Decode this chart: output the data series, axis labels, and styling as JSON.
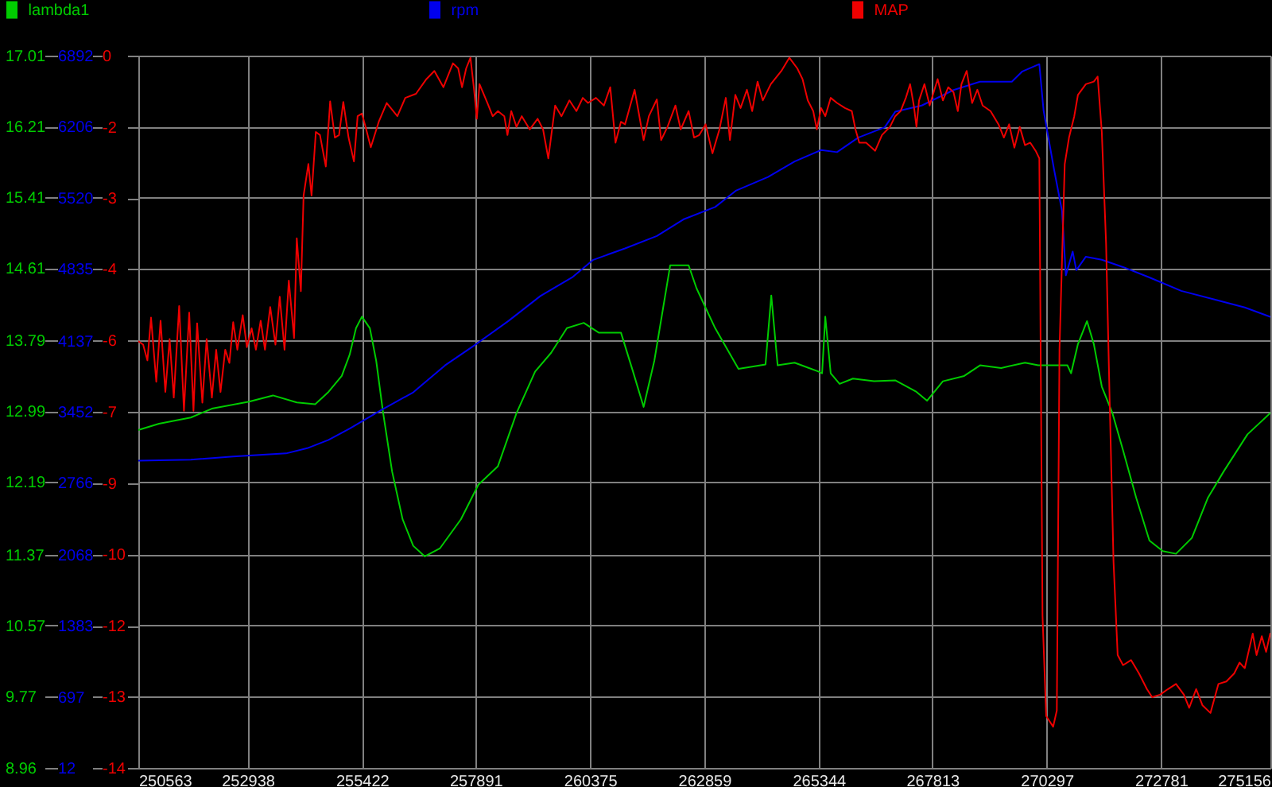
{
  "chart_data": {
    "type": "line",
    "legend": "top",
    "grid": true,
    "xlim": [
      250563,
      275156
    ],
    "xticks": [
      250563,
      252938,
      255422,
      257891,
      260375,
      262859,
      265344,
      267813,
      270297,
      272781,
      275156
    ],
    "ylim": [
      8.96,
      17.01
    ],
    "yticks": [
      8.96,
      9.77,
      10.57,
      11.37,
      12.19,
      12.99,
      13.79,
      14.61,
      15.41,
      16.21,
      17.01
    ],
    "y2lim": [
      12,
      6892
    ],
    "y2ticks": [
      12,
      697,
      1383,
      2068,
      2766,
      3452,
      4137,
      4835,
      5520,
      6206,
      6892
    ],
    "y3lim": [
      -14.3,
      -0.3
    ],
    "y3ticks": [
      {
        "value": -14.3,
        "label": "-14"
      },
      {
        "value": -12.9,
        "label": "-13"
      },
      {
        "value": -11.51,
        "label": "-12"
      },
      {
        "value": -10.1,
        "label": "-10"
      },
      {
        "value": -8.7,
        "label": "-9"
      },
      {
        "value": -7.3,
        "label": "-7"
      },
      {
        "value": -5.9,
        "label": "-6"
      },
      {
        "value": -4.49,
        "label": "-4"
      },
      {
        "value": -3.1,
        "label": "-3"
      },
      {
        "value": -1.7,
        "label": "-2"
      },
      {
        "value": -0.3,
        "label": "0"
      }
    ],
    "series": [
      {
        "name": "lambda1",
        "color": "#00cc00",
        "axis": "y",
        "x": [
          250573,
          251012,
          251702,
          252161,
          252969,
          253487,
          254005,
          254405,
          254695,
          254982,
          255154,
          255292,
          255420,
          255593,
          255731,
          255879,
          256076,
          256304,
          256535,
          256787,
          257112,
          257571,
          257950,
          258375,
          258779,
          259183,
          259528,
          259873,
          260239,
          260563,
          261047,
          261309,
          261540,
          261772,
          262117,
          262517,
          262690,
          263094,
          263600,
          264188,
          264313,
          264451,
          264820,
          265338,
          265417,
          265486,
          265604,
          265797,
          266087,
          266546,
          267005,
          267467,
          267696,
          268041,
          268503,
          268848,
          269307,
          269825,
          270112,
          270747,
          270826,
          270975,
          271172,
          271320,
          271493,
          271724,
          271955,
          272242,
          272528,
          272818,
          273105,
          273450,
          273795,
          274140,
          274658,
          275152
        ],
        "values": [
          12.78,
          12.85,
          12.92,
          13.02,
          13.1,
          13.17,
          13.09,
          13.07,
          13.21,
          13.39,
          13.63,
          13.93,
          14.06,
          13.93,
          13.56,
          12.98,
          12.31,
          11.77,
          11.47,
          11.35,
          11.44,
          11.77,
          12.16,
          12.37,
          12.97,
          13.44,
          13.65,
          13.93,
          13.99,
          13.88,
          13.88,
          13.44,
          13.04,
          13.56,
          14.64,
          14.64,
          14.38,
          13.93,
          13.47,
          13.52,
          14.3,
          13.51,
          13.54,
          13.44,
          13.42,
          14.06,
          13.42,
          13.3,
          13.36,
          13.33,
          13.34,
          13.21,
          13.11,
          13.33,
          13.39,
          13.51,
          13.48,
          13.54,
          13.51,
          13.51,
          13.42,
          13.75,
          14.01,
          13.75,
          13.27,
          12.97,
          12.55,
          12.01,
          11.53,
          11.41,
          11.38,
          11.56,
          12.01,
          12.31,
          12.73,
          12.97
        ]
      },
      {
        "name": "rpm",
        "color": "#0000ee",
        "axis": "y2",
        "x": [
          250573,
          251702,
          252624,
          253773,
          254232,
          254695,
          255154,
          255845,
          256535,
          257225,
          257916,
          258606,
          259297,
          259987,
          260446,
          261136,
          261827,
          262403,
          263094,
          263553,
          264243,
          264820,
          265396,
          265741,
          266201,
          266777,
          267005,
          267581,
          268272,
          268848,
          269539,
          269767,
          270136,
          270229,
          270457,
          270630,
          270712,
          270861,
          270940,
          271147,
          271493,
          271955,
          272528,
          273218,
          273909,
          274599,
          275152
        ],
        "values": [
          2980,
          2990,
          3020,
          3050,
          3100,
          3180,
          3290,
          3470,
          3640,
          3900,
          4110,
          4330,
          4570,
          4750,
          4920,
          5030,
          5150,
          5310,
          5430,
          5590,
          5720,
          5870,
          5980,
          5960,
          6100,
          6200,
          6350,
          6410,
          6560,
          6640,
          6640,
          6740,
          6810,
          6360,
          5790,
          5390,
          4770,
          5000,
          4820,
          4950,
          4920,
          4850,
          4750,
          4620,
          4540,
          4460,
          4370
        ]
      },
      {
        "name": "MAP",
        "color": "#ee0000",
        "axis": "y3",
        "x": [
          250573,
          250667,
          250760,
          250839,
          250953,
          251046,
          251150,
          251243,
          251333,
          251450,
          251554,
          251668,
          251761,
          251840,
          251954,
          252047,
          252161,
          252254,
          252348,
          252451,
          252541,
          252624,
          252714,
          252831,
          252921,
          253024,
          253117,
          253221,
          253314,
          253428,
          253542,
          253635,
          253739,
          253832,
          253946,
          254005,
          254094,
          254153,
          254257,
          254326,
          254419,
          254509,
          254636,
          254730,
          254833,
          254923,
          255016,
          255130,
          255247,
          255327,
          255420,
          255499,
          255613,
          255786,
          255959,
          256190,
          256362,
          256594,
          256822,
          256994,
          257191,
          257398,
          257512,
          257595,
          257685,
          257778,
          257857,
          257916,
          257975,
          258147,
          258261,
          258375,
          258513,
          258582,
          258665,
          258779,
          258893,
          259065,
          259238,
          259355,
          259469,
          259618,
          259756,
          259928,
          260080,
          260218,
          260332,
          260505,
          260677,
          260815,
          260929,
          261047,
          261136,
          261344,
          261540,
          261654,
          261827,
          261920,
          262058,
          262231,
          262345,
          262517,
          262635,
          262749,
          262887,
          263035,
          263187,
          263325,
          263415,
          263532,
          263646,
          263784,
          263898,
          264015,
          264129,
          264302,
          264533,
          264706,
          264878,
          264992,
          265106,
          265224,
          265303,
          265396,
          265486,
          265604,
          265741,
          265914,
          266062,
          266142,
          266225,
          266373,
          266570,
          266718,
          266891,
          267005,
          267122,
          267236,
          267329,
          267409,
          267467,
          267523,
          267640,
          267754,
          267927,
          268041,
          268158,
          268272,
          268365,
          268444,
          268558,
          268676,
          268790,
          268904,
          269076,
          269249,
          269366,
          269480,
          269594,
          269711,
          269825,
          269939,
          270056,
          270136,
          270205,
          270285,
          270436,
          270516,
          270574,
          270688,
          270781,
          270895,
          270975,
          271147,
          271320,
          271403,
          271493,
          271586,
          271665,
          271748,
          271838,
          271955,
          272128,
          272300,
          272473,
          272587,
          272759,
          272932,
          273105,
          273277,
          273391,
          273543,
          273681,
          273854,
          274026,
          274199,
          274371,
          274485,
          274599,
          274772,
          274855,
          274969,
          275062,
          275152
        ],
        "values": [
          -5.92,
          -5.98,
          -6.29,
          -5.45,
          -6.71,
          -5.51,
          -6.91,
          -5.87,
          -7.02,
          -5.22,
          -7.28,
          -5.35,
          -7.28,
          -5.56,
          -7.12,
          -5.87,
          -7.02,
          -6.08,
          -6.91,
          -6.08,
          -6.34,
          -5.54,
          -6.08,
          -5.4,
          -6.03,
          -5.66,
          -6.08,
          -5.51,
          -6.08,
          -5.24,
          -5.98,
          -5.04,
          -6.08,
          -4.72,
          -5.85,
          -3.89,
          -4.93,
          -3.05,
          -2.43,
          -3.05,
          -1.8,
          -1.86,
          -2.48,
          -1.2,
          -1.91,
          -1.86,
          -1.21,
          -1.91,
          -2.38,
          -1.49,
          -1.44,
          -1.7,
          -2.1,
          -1.6,
          -1.23,
          -1.49,
          -1.13,
          -1.05,
          -0.76,
          -0.6,
          -0.92,
          -0.45,
          -0.55,
          -0.92,
          -0.55,
          -0.34,
          -0.97,
          -1.54,
          -0.86,
          -1.23,
          -1.49,
          -1.39,
          -1.49,
          -1.86,
          -1.39,
          -1.7,
          -1.49,
          -1.75,
          -1.54,
          -1.75,
          -2.32,
          -1.28,
          -1.49,
          -1.18,
          -1.39,
          -1.13,
          -1.23,
          -1.13,
          -1.28,
          -0.92,
          -2.01,
          -1.6,
          -1.65,
          -0.97,
          -1.96,
          -1.49,
          -1.16,
          -1.96,
          -1.7,
          -1.28,
          -1.75,
          -1.39,
          -1.91,
          -1.86,
          -1.65,
          -2.22,
          -1.75,
          -1.13,
          -1.96,
          -1.07,
          -1.33,
          -0.97,
          -1.39,
          -0.81,
          -1.18,
          -0.86,
          -0.6,
          -0.34,
          -0.55,
          -0.76,
          -1.18,
          -1.39,
          -1.75,
          -1.33,
          -1.49,
          -1.13,
          -1.23,
          -1.33,
          -1.39,
          -1.75,
          -2.01,
          -2.01,
          -2.17,
          -1.86,
          -1.7,
          -1.49,
          -1.39,
          -1.13,
          -0.86,
          -1.28,
          -1.7,
          -1.18,
          -0.86,
          -1.28,
          -0.76,
          -1.18,
          -0.92,
          -1.02,
          -1.39,
          -0.86,
          -0.6,
          -1.23,
          -0.97,
          -1.28,
          -1.39,
          -1.65,
          -1.91,
          -1.65,
          -2.11,
          -1.7,
          -2.06,
          -2.01,
          -2.17,
          -2.32,
          -11.3,
          -13.28,
          -13.49,
          -13.17,
          -6.08,
          -2.43,
          -1.91,
          -1.49,
          -1.07,
          -0.86,
          -0.81,
          -0.71,
          -1.8,
          -3.99,
          -7.12,
          -10.25,
          -12.08,
          -12.28,
          -12.18,
          -12.44,
          -12.75,
          -12.91,
          -12.86,
          -12.75,
          -12.65,
          -12.86,
          -13.12,
          -12.75,
          -13.07,
          -13.22,
          -12.65,
          -12.6,
          -12.44,
          -12.23,
          -12.34,
          -11.66,
          -12.08,
          -11.71,
          -12.02,
          -11.66
        ]
      }
    ]
  }
}
